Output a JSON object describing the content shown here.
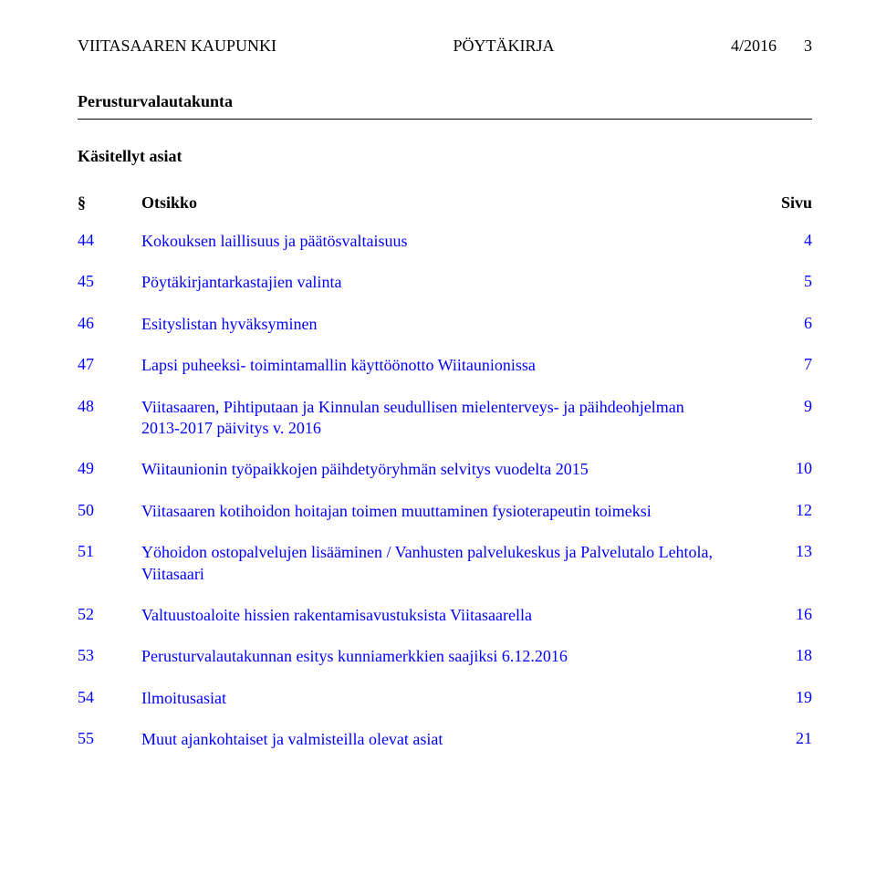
{
  "header": {
    "organization": "VIITASAAREN KAUPUNKI",
    "docType": "PÖYTÄKIRJA",
    "docNumber": "4/2016",
    "pageNumber": "3"
  },
  "committee": "Perusturvalautakunta",
  "sectionTitle": "Käsitellyt asiat",
  "tocHeader": {
    "section": "§",
    "title": "Otsikko",
    "page": "Sivu"
  },
  "tocItems": [
    {
      "section": "44",
      "title": "Kokouksen laillisuus ja päätösvaltaisuus",
      "page": "4"
    },
    {
      "section": "45",
      "title": "Pöytäkirjantarkastajien valinta",
      "page": "5"
    },
    {
      "section": "46",
      "title": "Esityslistan hyväksyminen",
      "page": "6"
    },
    {
      "section": "47",
      "title": "Lapsi puheeksi- toimintamallin käyttöönotto Wiitaunionissa",
      "page": "7"
    },
    {
      "section": "48",
      "title": "Viitasaaren, Pihtiputaan ja Kinnulan seudullisen mielenterveys- ja päihdeohjelman 2013-2017 päivitys v. 2016",
      "page": "9"
    },
    {
      "section": "49",
      "title": "Wiitaunionin työpaikkojen päihdetyöryhmän selvitys vuodelta 2015",
      "page": "10"
    },
    {
      "section": "50",
      "title": "Viitasaaren kotihoidon hoitajan toimen muuttaminen fysioterapeutin toimeksi",
      "page": "12"
    },
    {
      "section": "51",
      "title": "Yöhoidon ostopalvelujen lisääminen / Vanhusten palvelukeskus ja Palvelutalo Lehtola, Viitasaari",
      "page": "13"
    },
    {
      "section": "52",
      "title": "Valtuustoaloite hissien rakentamisavustuksista Viitasaarella",
      "page": "16"
    },
    {
      "section": "53",
      "title": "Perusturvalautakunnan esitys kunniamerkkien saajiksi 6.12.2016",
      "page": "18"
    },
    {
      "section": "54",
      "title": "Ilmoitusasiat",
      "page": "19"
    },
    {
      "section": "55",
      "title": "Muut ajankohtaiset ja valmisteilla olevat asiat",
      "page": "21"
    }
  ]
}
